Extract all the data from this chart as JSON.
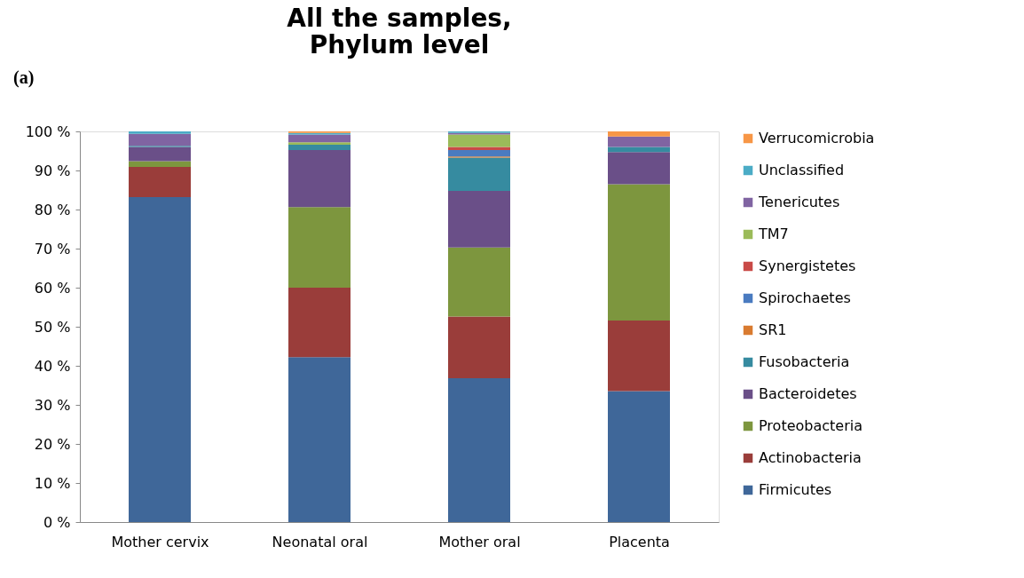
{
  "chart_data": {
    "type": "bar",
    "title": [
      "All the samples,",
      "Phylum level"
    ],
    "annotations": [
      "(a)"
    ],
    "categories": [
      "Mother cervix",
      "Neonatal oral",
      "Mother oral",
      "Placenta"
    ],
    "stacked": true,
    "ylim": [
      0,
      100
    ],
    "yticks": [
      {
        "value": 0,
        "label": "0 %"
      },
      {
        "value": 10,
        "label": "10 %"
      },
      {
        "value": 20,
        "label": "20 %"
      },
      {
        "value": 30,
        "label": "30 %"
      },
      {
        "value": 40,
        "label": "40 %"
      },
      {
        "value": 50,
        "label": "50 %"
      },
      {
        "value": 60,
        "label": "60 %"
      },
      {
        "value": 70,
        "label": "70 %"
      },
      {
        "value": 80,
        "label": "80 %"
      },
      {
        "value": 90,
        "label": "90 %"
      },
      {
        "value": 100,
        "label": "100 %"
      }
    ],
    "grid": false,
    "legend": "right",
    "series": [
      {
        "name": "Firmicutes",
        "color": "#3f6799",
        "values": [
          83.2,
          42.2,
          36.8,
          33.5
        ]
      },
      {
        "name": "Actinobacteria",
        "color": "#9a3d3a",
        "values": [
          7.7,
          17.8,
          15.8,
          18.1
        ]
      },
      {
        "name": "Proteobacteria",
        "color": "#7d963e",
        "values": [
          1.5,
          20.6,
          17.7,
          34.9
        ]
      },
      {
        "name": "Bacteroidetes",
        "color": "#6a4f88",
        "values": [
          3.6,
          14.6,
          14.5,
          8.2
        ]
      },
      {
        "name": "Fusobacteria",
        "color": "#368ba0",
        "values": [
          0.3,
          1.4,
          8.5,
          1.3
        ]
      },
      {
        "name": "SR1",
        "color": "#d97b30",
        "values": [
          0,
          0,
          0.3,
          0
        ]
      },
      {
        "name": "Spirochaetes",
        "color": "#4a7bc0",
        "values": [
          0,
          0,
          1.6,
          0
        ]
      },
      {
        "name": "Synergistetes",
        "color": "#c94a47",
        "values": [
          0,
          0,
          0.8,
          0
        ]
      },
      {
        "name": "TM7",
        "color": "#9bbb59",
        "values": [
          0,
          0.6,
          3.2,
          0
        ]
      },
      {
        "name": "Tenericutes",
        "color": "#8064a2",
        "values": [
          3.1,
          2.0,
          0.4,
          2.7
        ]
      },
      {
        "name": "Unclassified",
        "color": "#4bacc6",
        "values": [
          0.6,
          0.4,
          0.4,
          0
        ]
      },
      {
        "name": "Verrucomicrobia",
        "color": "#f79646",
        "values": [
          0,
          0.4,
          0,
          1.3
        ]
      }
    ]
  }
}
